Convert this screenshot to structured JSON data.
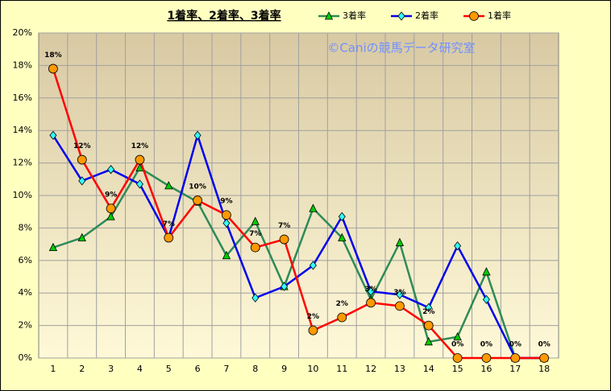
{
  "chart_data": {
    "type": "line",
    "title": "1着率、2着率、3着率",
    "annotation": "©Caniの競馬データ研究室",
    "categories": [
      "1",
      "2",
      "3",
      "4",
      "5",
      "6",
      "7",
      "8",
      "9",
      "10",
      "11",
      "12",
      "13",
      "14",
      "15",
      "16",
      "17",
      "18"
    ],
    "series": [
      {
        "name": "3着率",
        "color": "#2e8b57",
        "marker": "triangle",
        "marker_color": "#00cc00",
        "values": [
          6.8,
          7.4,
          8.7,
          11.7,
          10.6,
          9.6,
          6.3,
          8.4,
          4.4,
          9.2,
          7.4,
          3.6,
          7.1,
          1.0,
          1.3,
          5.3,
          0,
          0
        ]
      },
      {
        "name": "2着率",
        "color": "#0000ee",
        "marker": "diamond",
        "marker_color": "#33ffff",
        "values": [
          13.7,
          10.9,
          11.6,
          10.7,
          7.4,
          13.7,
          8.3,
          3.7,
          4.4,
          5.7,
          8.7,
          4.1,
          3.9,
          3.1,
          6.9,
          3.6,
          0,
          0
        ]
      },
      {
        "name": "1着率",
        "color": "#ff0000",
        "marker": "circle",
        "marker_color": "#ff9900",
        "values": [
          17.8,
          12.2,
          9.2,
          12.2,
          7.4,
          9.7,
          8.8,
          6.8,
          7.3,
          1.7,
          2.5,
          3.4,
          3.2,
          2.0,
          0,
          0,
          0,
          0
        ],
        "value_labels": [
          "18%",
          "12%",
          "9%",
          "12%",
          "7%",
          "10%",
          "9%",
          "7%",
          "7%",
          "2%",
          "2%",
          "3%",
          "3%",
          "2%",
          "0%",
          "0%",
          "0%",
          "0%"
        ]
      }
    ],
    "ylim": [
      0,
      20
    ],
    "yticks": [
      {
        "value": 0,
        "label": "0%"
      },
      {
        "value": 2,
        "label": "2%"
      },
      {
        "value": 4,
        "label": "4%"
      },
      {
        "value": 6,
        "label": "6%"
      },
      {
        "value": 8,
        "label": "8%"
      },
      {
        "value": 10,
        "label": "10%"
      },
      {
        "value": 12,
        "label": "12%"
      },
      {
        "value": 14,
        "label": "14%"
      },
      {
        "value": 16,
        "label": "16%"
      },
      {
        "value": 18,
        "label": "18%"
      },
      {
        "value": 20,
        "label": "20%"
      }
    ],
    "grid": true,
    "legend": "top"
  }
}
